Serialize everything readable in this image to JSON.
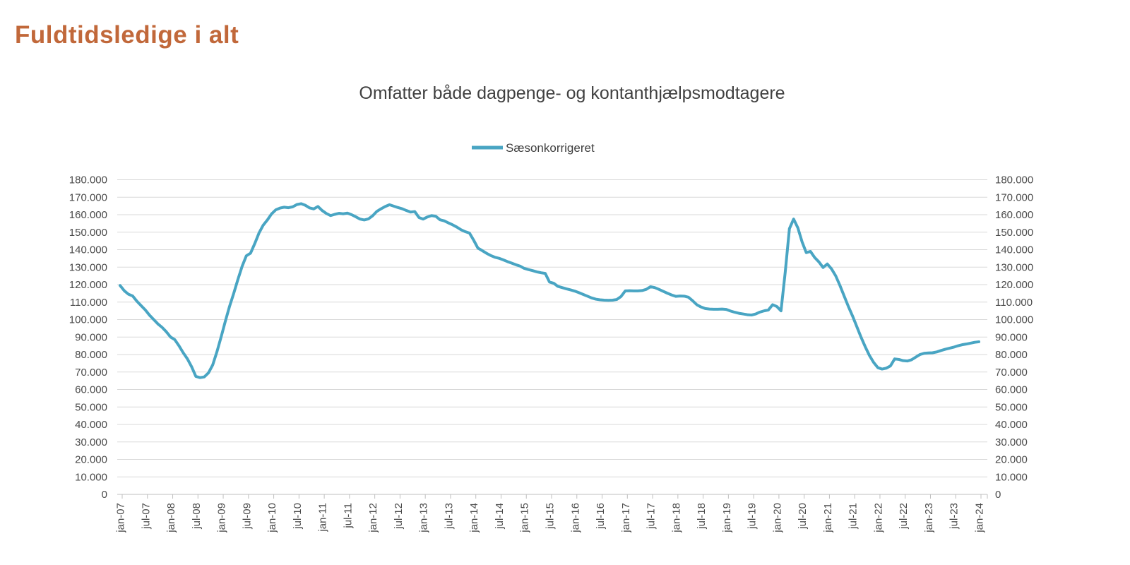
{
  "page": {
    "heading": "Fuldtidsledige i alt"
  },
  "colors": {
    "heading": "#C1683A",
    "title_text": "#404040",
    "axis_text": "#4A4A4A",
    "gridline": "#D9D9D9",
    "axis_line": "#BFBFBF",
    "series_line": "#49A5C3"
  },
  "chart_data": {
    "type": "line",
    "title": "Omfatter både dagpenge- og kontanthjælpsmodtagere",
    "legend": [
      {
        "name": "Sæsonkorrigeret",
        "color": "#49A5C3"
      }
    ],
    "legend_position": "top-center",
    "grid": "horizontal-only",
    "x_unit": "month",
    "x_range": [
      "jan-07",
      "jan-24"
    ],
    "x_tick_every_months": 6,
    "x_tick_labels": [
      "jan-07",
      "jul-07",
      "jan-08",
      "jul-08",
      "jan-09",
      "jul-09",
      "jan-10",
      "jul-10",
      "jan-11",
      "jul-11",
      "jan-12",
      "jul-12",
      "jan-13",
      "jul-13",
      "jan-14",
      "jul-14",
      "jan-15",
      "jul-15",
      "jan-16",
      "jul-16",
      "jan-17",
      "jul-17",
      "jan-18",
      "jul-18",
      "jan-19",
      "jul-19",
      "jan-20",
      "jul-20",
      "jan-21",
      "jul-21",
      "jan-22",
      "jul-22",
      "jan-23",
      "jul-23",
      "jan-24"
    ],
    "y_axis": {
      "min": 0,
      "max": 180000,
      "step": 10000,
      "sides": [
        "left",
        "right"
      ],
      "tick_labels": [
        "0",
        "10.000",
        "20.000",
        "30.000",
        "40.000",
        "50.000",
        "60.000",
        "70.000",
        "80.000",
        "90.000",
        "100.000",
        "110.000",
        "120.000",
        "130.000",
        "140.000",
        "150.000",
        "160.000",
        "170.000",
        "180.000"
      ]
    },
    "series": [
      {
        "name": "Sæsonkorrigeret",
        "color": "#49A5C3",
        "start_month": "jan-07",
        "monthly_values": [
          119500,
          116500,
          114500,
          113500,
          110500,
          108000,
          105500,
          102500,
          100000,
          97500,
          95500,
          93000,
          90000,
          88500,
          85000,
          81000,
          77500,
          73000,
          67500,
          66800,
          67200,
          69500,
          74000,
          81500,
          90000,
          99000,
          107500,
          115000,
          123000,
          130500,
          136500,
          138000,
          143500,
          149500,
          154000,
          157000,
          160500,
          162800,
          163800,
          164300,
          164000,
          164500,
          165800,
          166300,
          165400,
          163900,
          163300,
          164700,
          162400,
          160700,
          159500,
          160200,
          160800,
          160500,
          160900,
          160000,
          158800,
          157500,
          157000,
          157600,
          159400,
          161900,
          163400,
          164700,
          165700,
          164900,
          164100,
          163400,
          162400,
          161500,
          161800,
          158400,
          157500,
          158700,
          159500,
          159100,
          157100,
          156500,
          155300,
          154200,
          152900,
          151400,
          150300,
          149500,
          145400,
          140900,
          139500,
          138000,
          136700,
          135700,
          135100,
          134200,
          133200,
          132300,
          131400,
          130600,
          129300,
          128600,
          128000,
          127300,
          126800,
          126400,
          121500,
          120800,
          119000,
          118300,
          117600,
          117000,
          116300,
          115400,
          114400,
          113400,
          112400,
          111700,
          111300,
          111100,
          111000,
          111100,
          111500,
          113200,
          116400,
          116500,
          116400,
          116400,
          116600,
          117300,
          118800,
          118300,
          117300,
          116200,
          115100,
          114100,
          113300,
          113500,
          113400,
          112800,
          110800,
          108500,
          107200,
          106300,
          106000,
          105900,
          105900,
          106000,
          105800,
          104900,
          104200,
          103600,
          103200,
          102800,
          102600,
          103200,
          104300,
          105000,
          105500,
          108500,
          107500,
          105000,
          127000,
          152000,
          157500,
          152500,
          144500,
          138300,
          139000,
          135500,
          133000,
          129800,
          131800,
          129000,
          125000,
          119500,
          113500,
          107500,
          102000,
          96000,
          90000,
          84500,
          79500,
          75500,
          72500,
          71700,
          72200,
          73500,
          77500,
          77200,
          76500,
          76300,
          77000,
          78500,
          80000,
          80700,
          80900,
          81000,
          81500,
          82300,
          83000,
          83600,
          84200,
          85000,
          85600,
          86000,
          86500,
          87000,
          87300
        ]
      }
    ]
  }
}
